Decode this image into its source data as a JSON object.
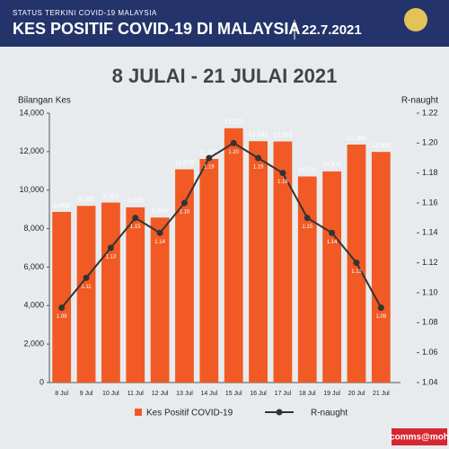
{
  "header": {
    "kicker": "STATUS TERKINI COVID-19 MALAYSIA",
    "title": "KES POSITIF COVID-19 DI MALAYSIA",
    "date": "22.7.2021"
  },
  "footer": "comms@moh",
  "chart_data": {
    "type": "bar",
    "title": "8 JULAI - 21 JULAI 2021",
    "ylabel": "Bilangan Kes",
    "y2label": "R-naught",
    "categories": [
      "8 Jul",
      "9 Jul",
      "10 Jul",
      "11 Jul",
      "12 Jul",
      "13 Jul",
      "14 Jul",
      "15 Jul",
      "16 Jul",
      "17 Jul",
      "18 Jul",
      "19 Jul",
      "20 Jul",
      "21 Jul"
    ],
    "series": [
      {
        "name": "Kes Positif COVID-19",
        "type": "bar",
        "color": "#f15a24",
        "values": [
          8868,
          9180,
          9353,
          9105,
          8574,
          11079,
          11618,
          13215,
          12541,
          12528,
          10710,
          10972,
          12366,
          11985
        ],
        "value_labels": [
          "8,868",
          "9,180",
          "9,353",
          "9,105",
          "8,574",
          "11,079",
          "11,618",
          "13,215",
          "12,541",
          "12,528",
          "10,710",
          "10,972",
          "12,366",
          "11,985"
        ]
      },
      {
        "name": "R-naught",
        "type": "line",
        "axis": "y2",
        "color": "#333333",
        "values": [
          1.09,
          1.11,
          1.13,
          1.15,
          1.14,
          1.16,
          1.19,
          1.2,
          1.19,
          1.18,
          1.15,
          1.14,
          1.12,
          1.09
        ],
        "value_labels": [
          "1.09",
          "1.11",
          "1.13",
          "1.15",
          "1.14",
          "1.16",
          "1.19",
          "1.20",
          "1.19",
          "1.18",
          "1.15",
          "1.14",
          "1.12",
          "1.09"
        ]
      }
    ],
    "ylim": [
      0,
      14000
    ],
    "yticks": [
      0,
      {
        "value": 2000,
        "label": "2,000"
      },
      {
        "value": 4000,
        "label": "4,000"
      },
      {
        "value": 6000,
        "label": "6,000"
      },
      {
        "value": 8000,
        "label": "8,000"
      },
      {
        "value": 10000,
        "label": "10,000"
      },
      {
        "value": 12000,
        "label": "12,000"
      },
      {
        "value": 14000,
        "label": "14,000"
      }
    ],
    "y2lim": [
      1.04,
      1.22
    ],
    "y2ticks": [
      1.04,
      1.06,
      1.08,
      {
        "value": 1.1,
        "label": "1.10"
      },
      1.12,
      1.14,
      1.16,
      1.18,
      {
        "value": 1.2,
        "label": "1.20"
      },
      1.22
    ]
  }
}
